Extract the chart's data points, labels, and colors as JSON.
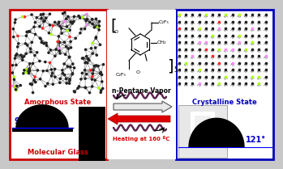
{
  "left_box_color": "#cc0000",
  "right_box_color": "#0000bb",
  "amorphous_label": "Amorphous State",
  "crystalline_label": "Crystalline State",
  "molecular_glass_label": "Molecular Glass",
  "angle_left": "98°",
  "angle_right": "121°",
  "npentane_label": "n-Pentane Vapor",
  "heating_label": "Heating at 160 ºC",
  "background_color": "#c8c8c8"
}
